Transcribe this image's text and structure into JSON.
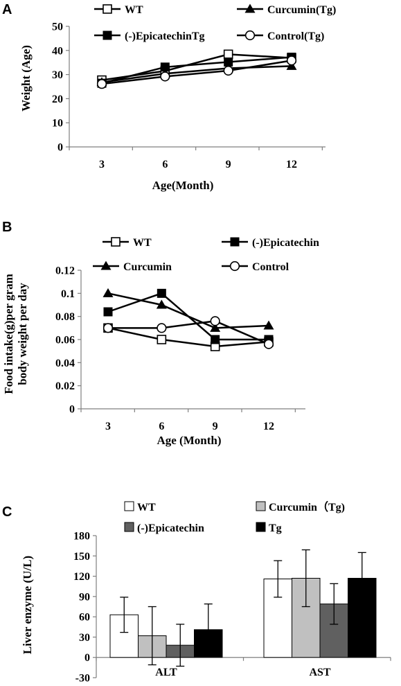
{
  "chart_data": [
    {
      "panel": "A",
      "type": "line",
      "x": [
        3,
        6,
        9,
        12
      ],
      "xlabel": "Age(Month)",
      "ylabel": "Weight (Age)",
      "ylim": [
        0,
        50
      ],
      "yticks": [
        "0",
        "10",
        "20",
        "30",
        "40",
        "50"
      ],
      "xticks": [
        "3",
        "6",
        "9",
        "12"
      ],
      "legend_position": "top",
      "series": [
        {
          "name": "WT",
          "marker": "square-open",
          "values": [
            27.7,
            31.5,
            38.4,
            36.9
          ]
        },
        {
          "name": "Curcumin(Tg)",
          "marker": "triangle-filled",
          "values": [
            26.8,
            30.4,
            32.6,
            33.5
          ]
        },
        {
          "name": "(-)EpicatechinTg",
          "marker": "square-filled",
          "values": [
            26.4,
            33.1,
            35.2,
            37.2
          ]
        },
        {
          "name": "Control(Tg)",
          "marker": "circle-open",
          "values": [
            26.1,
            29.2,
            31.6,
            35.8
          ]
        }
      ]
    },
    {
      "panel": "B",
      "type": "line",
      "x": [
        3,
        6,
        9,
        12
      ],
      "xlabel": "Age (Month)",
      "ylabel": [
        "Food intake(g)per gram",
        "body weight per day"
      ],
      "ylim": [
        0,
        0.12
      ],
      "yticks": [
        "0",
        "0.02",
        "0.04",
        "0.06",
        "0.08",
        "0.1",
        "0.12"
      ],
      "xticks": [
        "3",
        "6",
        "9",
        "12"
      ],
      "legend_position": "top",
      "series": [
        {
          "name": "WT",
          "marker": "square-open",
          "values": [
            0.07,
            0.06,
            0.054,
            0.058
          ]
        },
        {
          "name": "(-)Epicatechin",
          "marker": "square-filled",
          "values": [
            0.084,
            0.1,
            0.06,
            0.06
          ]
        },
        {
          "name": "Curcumin",
          "marker": "triangle-filled",
          "values": [
            0.1,
            0.09,
            0.07,
            0.072
          ]
        },
        {
          "name": "Control",
          "marker": "circle-open",
          "values": [
            0.07,
            0.07,
            0.076,
            0.056
          ]
        }
      ]
    },
    {
      "panel": "C",
      "type": "bar",
      "categories": [
        "ALT",
        "AST"
      ],
      "ylabel": "Liver enzyme (U/L)",
      "ylim": [
        -30,
        180
      ],
      "yticks": [
        "-30",
        "0",
        "30",
        "60",
        "90",
        "120",
        "150",
        "180"
      ],
      "legend_position": "top",
      "series": [
        {
          "name": "WT",
          "color": "#ffffff",
          "values": [
            63,
            116
          ],
          "errors": [
            26,
            27
          ]
        },
        {
          "name": "Curcumin（Tg)",
          "color": "#c0c0c0",
          "values": [
            32,
            117
          ],
          "errors": [
            43,
            42
          ]
        },
        {
          "name": "(-)Epicatechin",
          "color": "#606060",
          "values": [
            18,
            79
          ],
          "errors": [
            31,
            30
          ]
        },
        {
          "name": "Tg",
          "color": "#000000",
          "values": [
            41,
            117
          ],
          "errors": [
            38,
            38
          ]
        }
      ]
    }
  ],
  "panel_labels": [
    "A",
    "B",
    "C"
  ]
}
